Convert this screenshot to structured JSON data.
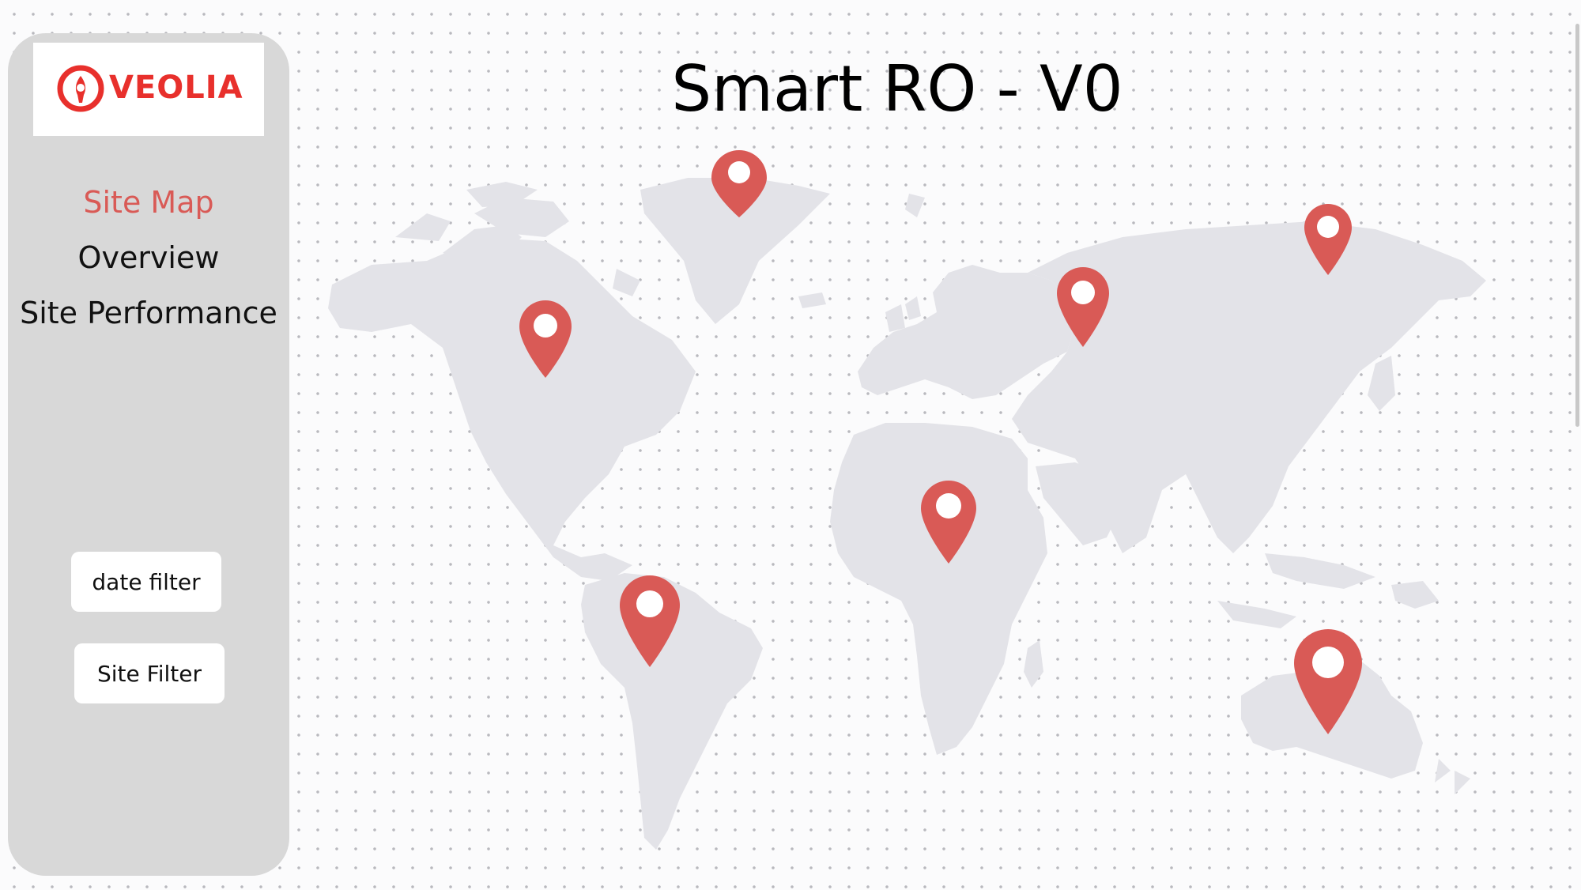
{
  "brand": {
    "name": "VEOLIA",
    "color": "#e8302c",
    "icon": "veolia-logo-icon"
  },
  "title": "Smart RO - V0",
  "nav": {
    "items": [
      {
        "label": "Site Map",
        "active": true
      },
      {
        "label": "Overview",
        "active": false
      },
      {
        "label": "Site Performance",
        "active": false
      }
    ]
  },
  "filters": {
    "date_label": "date filter",
    "site_label": "Site Filter"
  },
  "map": {
    "land_color": "#e3e3e8",
    "pin_color": "#d95a56",
    "pin_icon": "map-pin-icon",
    "site_count": 7
  }
}
